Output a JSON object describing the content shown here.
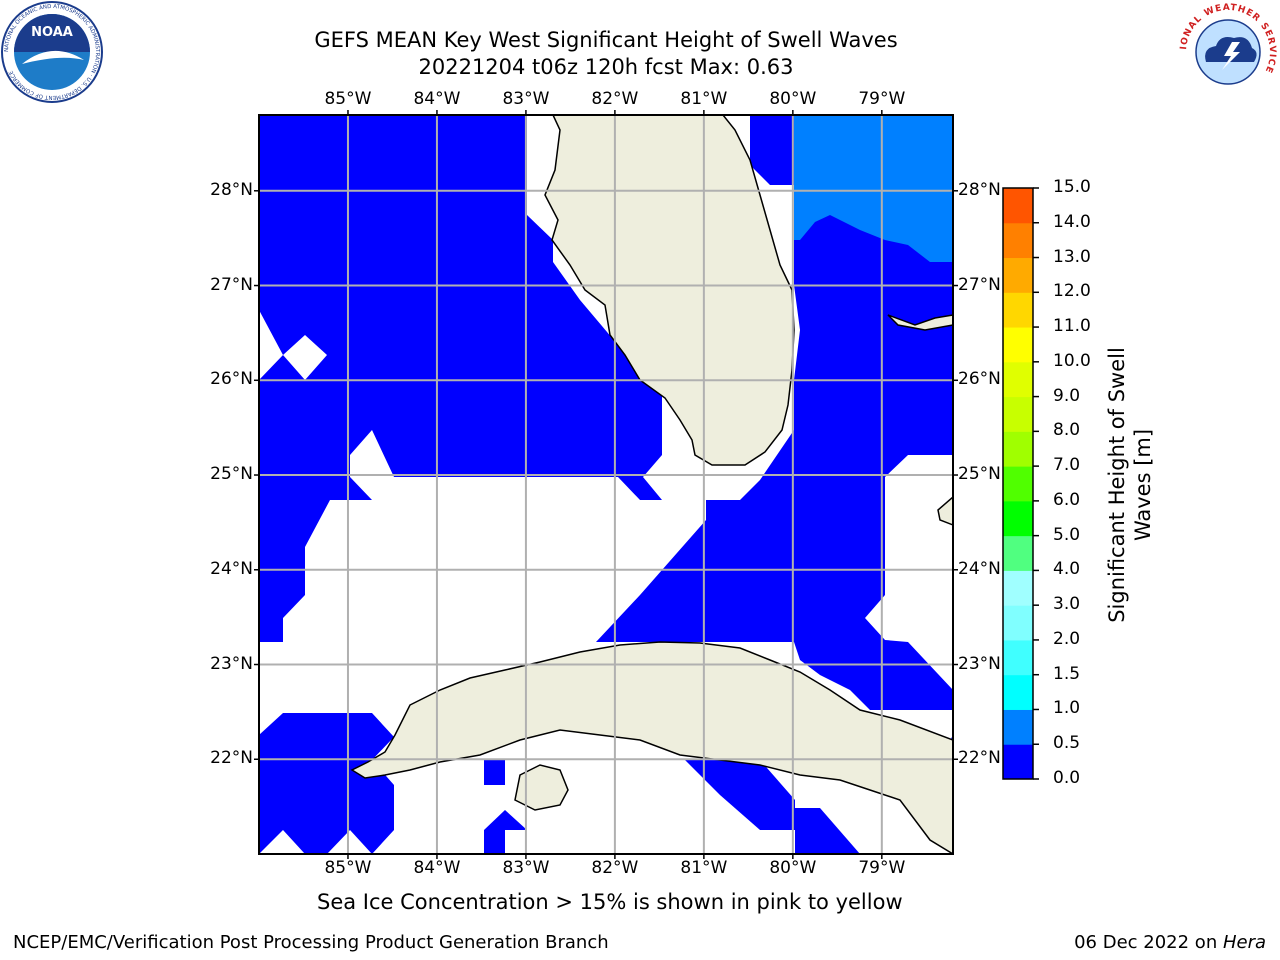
{
  "title": {
    "line1": "GEFS MEAN Key West Significant Height of Swell Waves",
    "line2": "20221204 t06z 120h fcst   Max: 0.63"
  },
  "map": {
    "lon_labels": [
      "85°W",
      "84°W",
      "83°W",
      "82°W",
      "81°W",
      "80°W",
      "79°W"
    ],
    "lon_values": [
      -85,
      -84,
      -83,
      -82,
      -81,
      -80,
      -79
    ],
    "lat_labels": [
      "28°N",
      "27°N",
      "26°N",
      "25°N",
      "24°N",
      "23°N",
      "22°N"
    ],
    "lat_values": [
      28,
      27,
      26,
      25,
      24,
      23,
      22
    ],
    "lon_range": [
      -86,
      -78.2
    ],
    "lat_range": [
      21,
      28.8
    ],
    "grid": true,
    "colors": {
      "low_swell": "#0000ff",
      "mid_swell": "#0080ff",
      "land": "#eeeedd",
      "coastline": "#000000",
      "gridline": "#b0b0b0"
    }
  },
  "colorbar": {
    "title_line1": "Significant Height of Swell",
    "title_line2": "Waves [m]",
    "tick_labels": [
      "0.0",
      "0.5",
      "1.0",
      "1.5",
      "2.0",
      "3.0",
      "4.0",
      "5.0",
      "6.0",
      "7.0",
      "8.0",
      "9.0",
      "10.0",
      "11.0",
      "12.0",
      "13.0",
      "14.0",
      "15.0"
    ],
    "bin_colors": [
      "#0000ff",
      "#0080ff",
      "#00ffff",
      "#40ffff",
      "#80ffff",
      "#a0ffff",
      "#50ff80",
      "#00ff00",
      "#50ff00",
      "#a0ff00",
      "#c8ff00",
      "#e0ff00",
      "#ffff00",
      "#ffd700",
      "#ffaa00",
      "#ff8000",
      "#ff5500",
      "#ff2a00",
      "#ff0000"
    ]
  },
  "caption": "Sea Ice Concentration > 15% is shown in pink to yellow",
  "footer": {
    "left": "NCEP/EMC/Verification Post Processing Product Generation Branch",
    "right_date": "06 Dec 2022 on ",
    "right_host": "Hera"
  },
  "logos": {
    "noaa_text": "NOAA",
    "noaa_ring_text": "NATIONAL OCEANIC AND ATMOSPHERIC ADMINISTRATION · U.S. DEPARTMENT OF COMMERCE",
    "nws_ring_text": "NATIONAL WEATHER SERVICE"
  }
}
